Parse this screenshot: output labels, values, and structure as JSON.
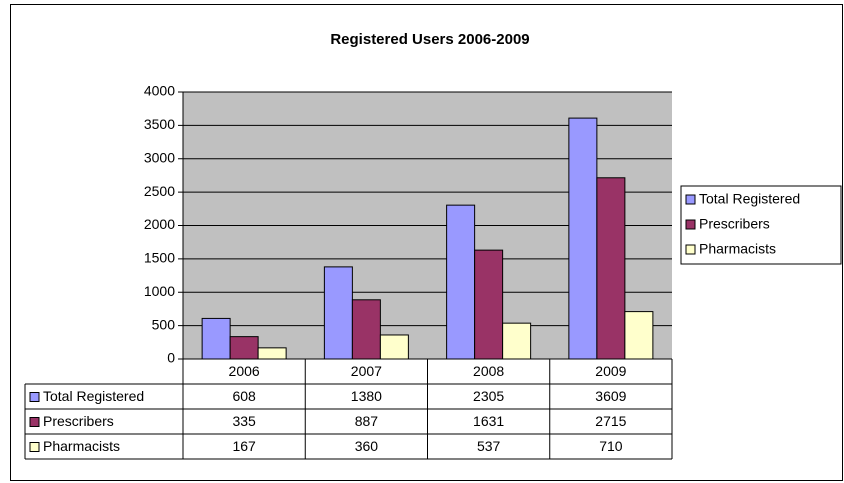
{
  "chart_data": {
    "type": "bar",
    "title": "Registered Users 2006-2009",
    "categories": [
      "2006",
      "2007",
      "2008",
      "2009"
    ],
    "series": [
      {
        "name": "Total Registered",
        "color": "#9999ff",
        "values": [
          608,
          1380,
          2305,
          3609
        ]
      },
      {
        "name": "Prescribers",
        "color": "#993366",
        "values": [
          335,
          887,
          1631,
          2715
        ]
      },
      {
        "name": "Pharmacists",
        "color": "#ffffcc",
        "values": [
          167,
          360,
          537,
          710
        ]
      }
    ],
    "ylim": [
      0,
      4000
    ],
    "yticks": [
      0,
      500,
      1000,
      1500,
      2000,
      2500,
      3000,
      3500,
      4000
    ],
    "grid": true,
    "legend": "right",
    "data_table": true
  }
}
